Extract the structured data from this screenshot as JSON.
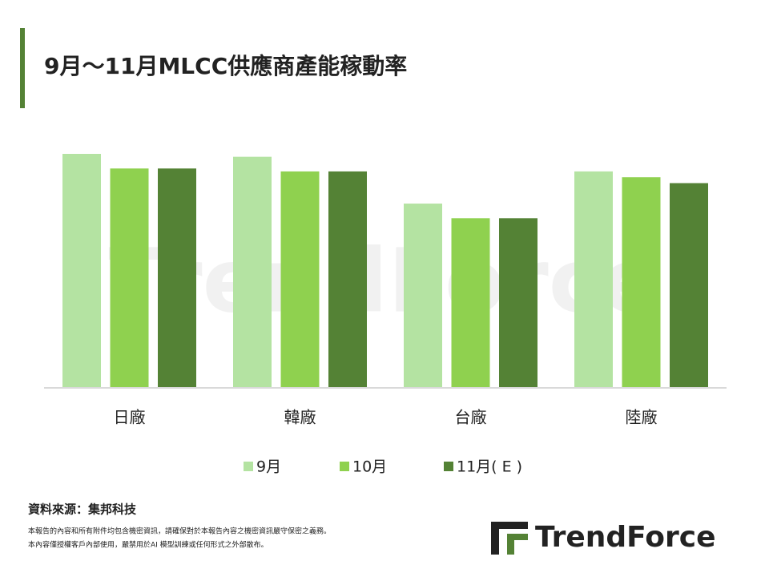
{
  "chart_data": {
    "type": "bar",
    "title": "9月～11月MLCC供應商產能稼動率",
    "categories": [
      "日廠",
      "韓廠",
      "台廠",
      "陸廠"
    ],
    "series": [
      {
        "name": "9月",
        "color": "#b4e3a2",
        "values": [
          80,
          79,
          63,
          74
        ]
      },
      {
        "name": "10月",
        "color": "#8fd14f",
        "values": [
          75,
          74,
          58,
          72
        ]
      },
      {
        "name": "11月( E )",
        "color": "#548235",
        "values": [
          75,
          74,
          58,
          70
        ]
      }
    ],
    "ylim": [
      0,
      100
    ],
    "source": "資料來源：集邦科技",
    "disclaimer": [
      "本報告的內容和所有附件均包含機密資訊，請確保對於本報告內容之機密資訊嚴守保密之義務。",
      "本內容僅授權客戶內部使用，嚴禁用於AI 模型訓練或任何形式之外部散布。"
    ],
    "watermark": "TrendForce",
    "logo": "TrendForce"
  }
}
